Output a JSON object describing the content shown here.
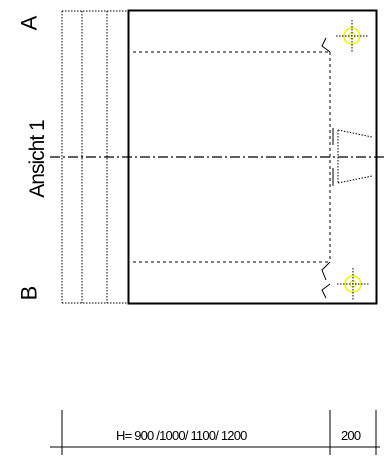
{
  "labels": {
    "section_a": "A",
    "section_b": "B",
    "view": "Ansicht 1"
  },
  "dimensions": {
    "main": "H= 900 /1000/ 1100/ 1200",
    "side": "200"
  },
  "colors": {
    "line": "#000000",
    "marker": "#f2f000"
  }
}
